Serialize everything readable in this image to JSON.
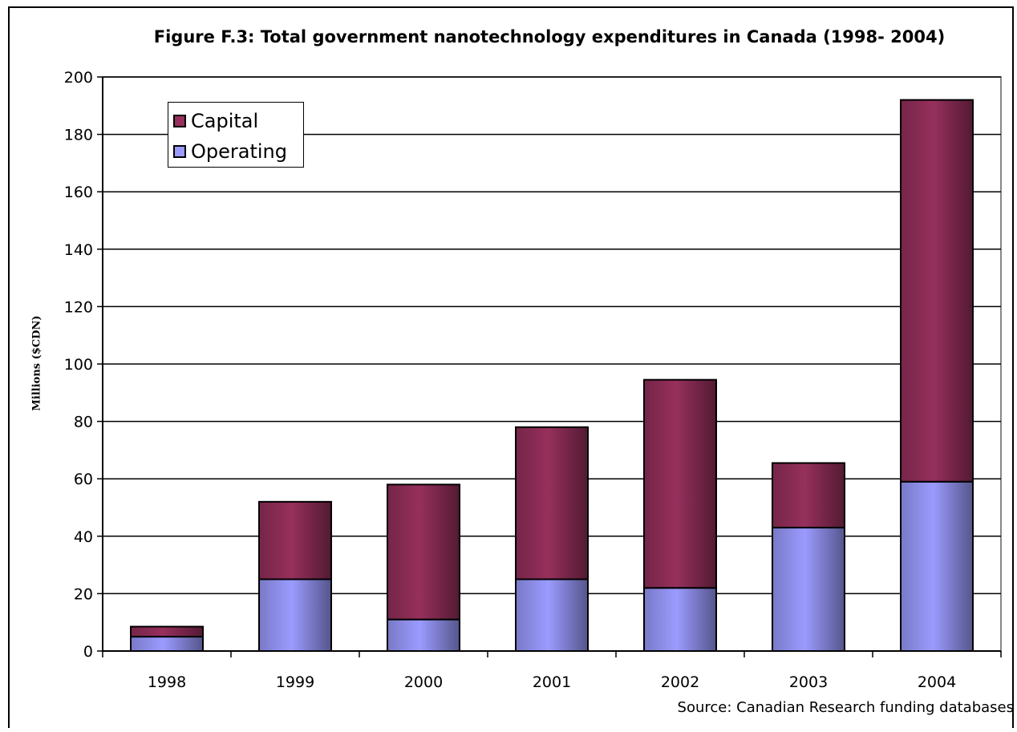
{
  "chart_data": {
    "type": "bar",
    "stacked": true,
    "title": "Figure F.3: Total government nanotechnology expenditures in Canada (1998- 2004)",
    "ylabel": "Millions ($CDN)",
    "xlabel": "",
    "ylim": [
      0,
      200
    ],
    "yticks": [
      0,
      20,
      40,
      60,
      80,
      100,
      120,
      140,
      160,
      180,
      200
    ],
    "grid": true,
    "legend_position": "top-left",
    "categories": [
      "1998",
      "1999",
      "2000",
      "2001",
      "2002",
      "2003",
      "2004"
    ],
    "series": [
      {
        "name": "Operating",
        "color": "#9b9bff",
        "values": [
          5,
          25,
          11,
          25,
          22,
          43,
          59
        ]
      },
      {
        "name": "Capital",
        "color": "#96305c",
        "values": [
          3.5,
          27,
          47,
          53,
          72.5,
          22.5,
          133
        ]
      }
    ],
    "legend": [
      "Capital",
      "Operating"
    ],
    "source": "Source: Canadian Research funding databases"
  }
}
